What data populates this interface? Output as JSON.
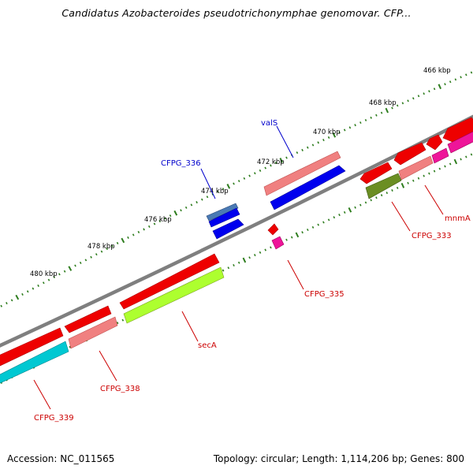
{
  "title": "Candidatus Azobacteroides pseudotrichonymphae genomovar. CFP...",
  "footer": {
    "accession": "Accession: NC_011565",
    "summary": "Topology: circular; Length: 1,114,206 bp; Genes: 800"
  },
  "scale_labels": [
    "466 kbp",
    "468 kbp",
    "470 kbp",
    "472 kbp",
    "474 kbp",
    "476 kbp",
    "478 kbp",
    "480 kbp"
  ],
  "gene_labels": [
    {
      "text": "valS",
      "color": "#0000cc"
    },
    {
      "text": "CFPG_336",
      "color": "#0000cc"
    },
    {
      "text": "mnmA",
      "color": "#cc0000"
    },
    {
      "text": "CFPG_333",
      "color": "#cc0000"
    },
    {
      "text": "CFPG_335",
      "color": "#cc0000"
    },
    {
      "text": "secA",
      "color": "#cc0000"
    },
    {
      "text": "CFPG_338",
      "color": "#cc0000"
    },
    {
      "text": "CFPG_339",
      "color": "#cc0000"
    }
  ],
  "colors": {
    "backbone": "#7f7f7f",
    "tick": "#2e7d1e",
    "red": "#ee0000",
    "pink": "#f08080",
    "blue": "#0000ee",
    "steel_blue": "#4a7ab4",
    "olive": "#6b8e23",
    "magenta": "#ee1599",
    "green_yellow": "#adff2f",
    "cyan": "#00c8d2"
  }
}
